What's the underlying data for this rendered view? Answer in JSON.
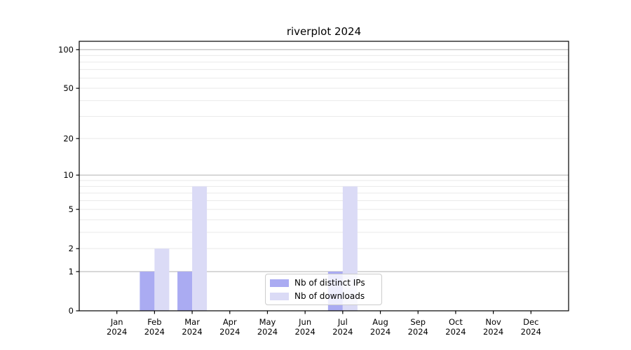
{
  "chart_data": {
    "type": "bar",
    "title": "riverplot 2024",
    "x_axis": {
      "categories": [
        "Jan",
        "Feb",
        "Mar",
        "Apr",
        "May",
        "Jun",
        "Jul",
        "Aug",
        "Sep",
        "Oct",
        "Nov",
        "Dec"
      ],
      "year_label": "2024"
    },
    "y_axis": {
      "scale": "log1p",
      "tick_labels": [
        0,
        1,
        2,
        5,
        10,
        20,
        50,
        100
      ],
      "major_gridlines": [
        1,
        10,
        100
      ],
      "minor_gridlines": [
        2,
        3,
        4,
        5,
        6,
        7,
        8,
        9,
        20,
        30,
        40,
        50,
        60,
        70,
        80,
        90
      ],
      "ylim": [
        0,
        116
      ]
    },
    "series": [
      {
        "name": "Nb of distinct IPs",
        "color": "#aaabf2",
        "values": [
          0,
          1,
          1,
          0,
          0,
          0,
          1,
          0,
          0,
          0,
          0,
          0
        ]
      },
      {
        "name": "Nb of downloads",
        "color": "#dbdbf6",
        "values": [
          0,
          2,
          8,
          0,
          0,
          0,
          8,
          0,
          0,
          0,
          0,
          0
        ]
      }
    ],
    "legend": {
      "position": "lower center"
    },
    "grid": {
      "major_color": "#b0b0b0",
      "minor_color": "#e9e9e9"
    },
    "spine_color": "#000000"
  }
}
